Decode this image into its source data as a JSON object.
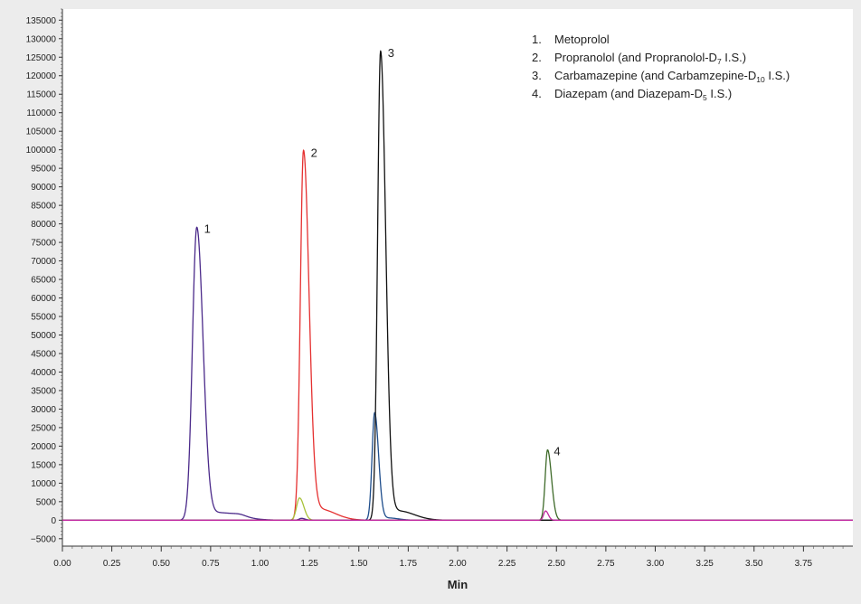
{
  "chart_data": {
    "type": "line",
    "title": "",
    "xlabel": "Min",
    "ylabel": "",
    "xlim": [
      0,
      4.0
    ],
    "ylim": [
      -7000,
      138000
    ],
    "x_ticks": [
      "0.00",
      "0.25",
      "0.50",
      "0.75",
      "1.00",
      "1.25",
      "1.50",
      "1.75",
      "2.00",
      "2.25",
      "2.50",
      "2.75",
      "3.00",
      "3.25",
      "3.50",
      "3.75"
    ],
    "y_ticks": [
      "−5000",
      "0",
      "5000",
      "10000",
      "15000",
      "20000",
      "25000",
      "30000",
      "35000",
      "40000",
      "45000",
      "50000",
      "55000",
      "60000",
      "65000",
      "70000",
      "75000",
      "80000",
      "85000",
      "90000",
      "95000",
      "100000",
      "105000",
      "110000",
      "115000",
      "120000",
      "125000",
      "130000",
      "135000"
    ],
    "grid": false,
    "legend_position": "top-right",
    "legend": [
      {
        "num": "1.",
        "text": "Metoprolol"
      },
      {
        "num": "2.",
        "text": "Propranolol (and Propranolol-D",
        "sub": "7",
        "tail": " I.S.)"
      },
      {
        "num": "3.",
        "text": "Carbamazepine (and Carbamzepine-D",
        "sub": "10",
        "tail": " I.S.)"
      },
      {
        "num": "4.",
        "text": "Diazepam (and Diazepam-D",
        "sub": "5",
        "tail": " I.S.)"
      }
    ],
    "peak_labels": [
      {
        "label": "1",
        "x": 0.68,
        "y": 79000
      },
      {
        "label": "2",
        "x": 1.22,
        "y": 99500
      },
      {
        "label": "3",
        "x": 1.61,
        "y": 126500
      },
      {
        "label": "4",
        "x": 2.45,
        "y": 19000
      }
    ],
    "series": [
      {
        "color": "#4b2a8a",
        "peaks": [
          {
            "rt": 0.68,
            "height": 79000,
            "sigma_left": 0.022,
            "sigma_right": 0.032
          },
          {
            "rt": 0.8,
            "height": 2000,
            "sigma_left": 0.05,
            "sigma_right": 0.1
          },
          {
            "rt": 0.9,
            "height": 400,
            "sigma_left": 0.03,
            "sigma_right": 0.03
          },
          {
            "rt": 1.21,
            "height": 500,
            "sigma_left": 0.012,
            "sigma_right": 0.018
          }
        ]
      },
      {
        "color": "#e53030",
        "peaks": [
          {
            "rt": 1.22,
            "height": 99500,
            "sigma_left": 0.016,
            "sigma_right": 0.028
          },
          {
            "rt": 1.3,
            "height": 3000,
            "sigma_left": 0.04,
            "sigma_right": 0.08
          }
        ]
      },
      {
        "color": "#a8c23a",
        "peaks": [
          {
            "rt": 1.2,
            "height": 6000,
            "sigma_left": 0.015,
            "sigma_right": 0.022
          }
        ]
      },
      {
        "color": "#1f4e8c",
        "peaks": [
          {
            "rt": 1.58,
            "height": 29000,
            "sigma_left": 0.013,
            "sigma_right": 0.02
          },
          {
            "rt": 1.65,
            "height": 600,
            "sigma_left": 0.03,
            "sigma_right": 0.05
          }
        ]
      },
      {
        "color": "#111111",
        "peaks": [
          {
            "rt": 1.61,
            "height": 126500,
            "sigma_left": 0.015,
            "sigma_right": 0.026
          },
          {
            "rt": 1.7,
            "height": 2500,
            "sigma_left": 0.04,
            "sigma_right": 0.08
          }
        ]
      },
      {
        "color": "#3f6b2a",
        "peaks": [
          {
            "rt": 2.455,
            "height": 19000,
            "sigma_left": 0.012,
            "sigma_right": 0.02
          }
        ]
      },
      {
        "color": "#c0279f",
        "peaks": [
          {
            "rt": 2.445,
            "height": 2500,
            "sigma_left": 0.01,
            "sigma_right": 0.014
          }
        ]
      }
    ]
  }
}
